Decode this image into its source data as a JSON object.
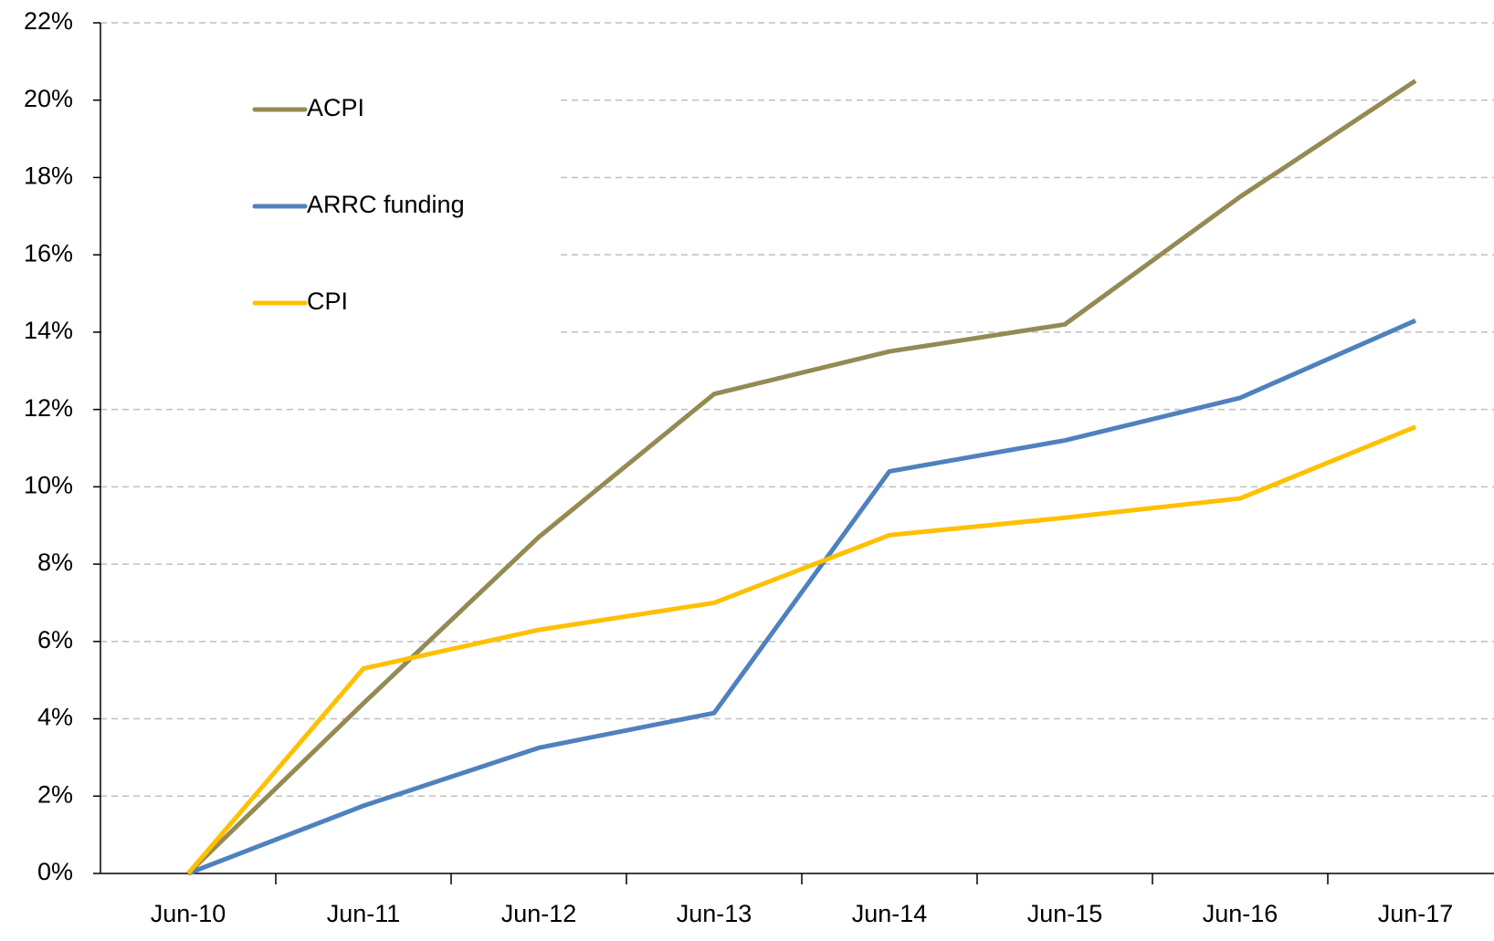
{
  "chart_data": {
    "type": "line",
    "categories": [
      "Jun-10",
      "Jun-11",
      "Jun-12",
      "Jun-13",
      "Jun-14",
      "Jun-15",
      "Jun-16",
      "Jun-17"
    ],
    "series": [
      {
        "name": "ACPI",
        "color": "#948a54",
        "values": [
          0,
          4.4,
          8.7,
          12.4,
          13.5,
          14.2,
          17.5,
          20.5
        ]
      },
      {
        "name": "ARRC funding",
        "color": "#4f81bd",
        "values": [
          0,
          1.75,
          3.25,
          4.15,
          10.4,
          11.2,
          12.3,
          14.3
        ]
      },
      {
        "name": "CPI",
        "color": "#ffc000",
        "values": [
          0,
          5.3,
          6.3,
          7.0,
          8.75,
          9.2,
          9.7,
          11.55
        ]
      }
    ],
    "ylim": [
      0,
      22
    ],
    "yticks": [
      {
        "value": 0,
        "label": "0%"
      },
      {
        "value": 2,
        "label": "2%"
      },
      {
        "value": 4,
        "label": "4%"
      },
      {
        "value": 6,
        "label": "6%"
      },
      {
        "value": 8,
        "label": "8%"
      },
      {
        "value": 10,
        "label": "10%"
      },
      {
        "value": 12,
        "label": "12%"
      },
      {
        "value": 14,
        "label": "14%"
      },
      {
        "value": 16,
        "label": "16%"
      },
      {
        "value": 18,
        "label": "18%"
      },
      {
        "value": 20,
        "label": "20%"
      },
      {
        "value": 22,
        "label": "22%"
      }
    ],
    "grid": true,
    "legend": "upper left"
  }
}
